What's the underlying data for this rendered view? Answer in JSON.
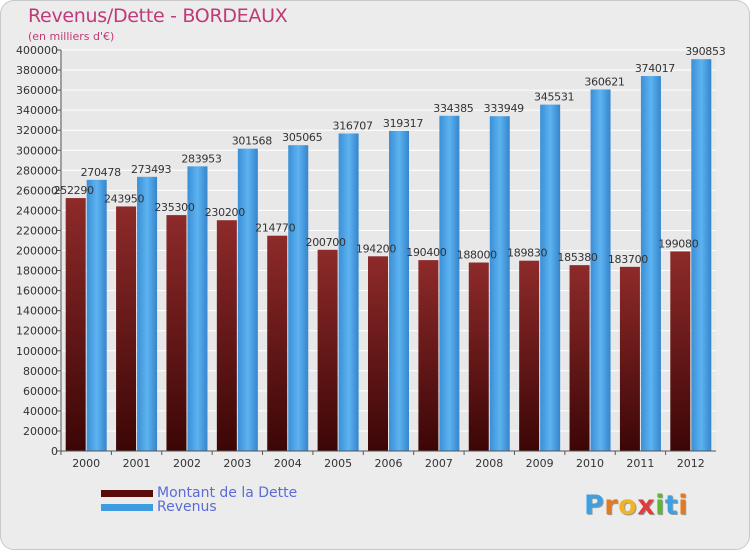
{
  "chart_data": {
    "type": "bar",
    "title": "Revenus/Dette - BORDEAUX",
    "subtitle": "(en milliers d'€)",
    "categories": [
      "2000",
      "2001",
      "2002",
      "2003",
      "2004",
      "2005",
      "2006",
      "2007",
      "2008",
      "2009",
      "2010",
      "2011",
      "2012"
    ],
    "series": [
      {
        "name": "Montant de la Dette",
        "values": [
          252290,
          243950,
          235300,
          230200,
          214770,
          200700,
          194200,
          190400,
          188000,
          189830,
          185380,
          183700,
          199080
        ],
        "labels": [
          "252290",
          "243950",
          "235300",
          "230200",
          "214770",
          "200700",
          "194200",
          "190400",
          "188000",
          "189830",
          "185380",
          "183700",
          "199080"
        ]
      },
      {
        "name": "Revenus",
        "values": [
          270478,
          273493,
          283953,
          301568,
          305065,
          316707,
          319317,
          334385,
          333949,
          345531,
          360621,
          374017,
          390853
        ],
        "labels": [
          "270478",
          "273493",
          "283953",
          "301568",
          "305065",
          "316707",
          "319317",
          "334385",
          "333949",
          "345531",
          "360621",
          "374017",
          "390853"
        ]
      }
    ],
    "y_ticks": [
      "0",
      "20000",
      "40000",
      "60000",
      "80000",
      "100000",
      "120000",
      "140000",
      "160000",
      "180000",
      "200000",
      "220000",
      "240000",
      "260000",
      "280000",
      "300000",
      "320000",
      "340000",
      "360000",
      "380000",
      "400000"
    ],
    "ylim": [
      0,
      400000
    ],
    "grid": true,
    "legend_position": "bottom-left",
    "colors": {
      "debt": "#7a1f1f",
      "revenue": "#3d9be0"
    }
  },
  "logo": {
    "letters": [
      "P",
      "r",
      "o",
      "x",
      "i",
      "t",
      "i"
    ],
    "colors": [
      "#3fa0e0",
      "#e07b24",
      "#f0b428",
      "#e03c3c",
      "#5cb82e",
      "#3fa0e0",
      "#e07b24"
    ]
  }
}
